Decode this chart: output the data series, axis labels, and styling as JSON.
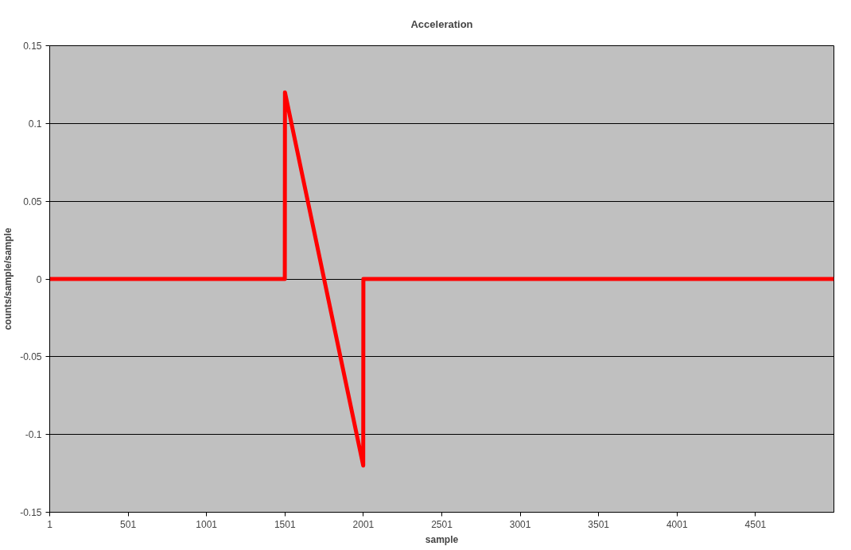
{
  "chart_data": {
    "type": "line",
    "title": "Acceleration",
    "xlabel": "sample",
    "ylabel": "counts/sample/sample",
    "series": [
      {
        "color": "#ff0000",
        "x": [
          1,
          1500,
          1501,
          2000,
          2001,
          5001
        ],
        "values": [
          0,
          0,
          0.12,
          -0.12,
          0,
          0
        ]
      }
    ],
    "xlim": [
      1,
      5001
    ],
    "xticks": [
      1,
      501,
      1001,
      1501,
      2001,
      2501,
      3001,
      3501,
      4001,
      4501
    ],
    "ylim": [
      -0.15,
      0.15
    ],
    "yticks": [
      -0.15,
      -0.1,
      -0.05,
      0,
      0.05,
      0.1,
      0.15
    ],
    "grid": "y",
    "marker": "none",
    "line_style": "solid"
  }
}
